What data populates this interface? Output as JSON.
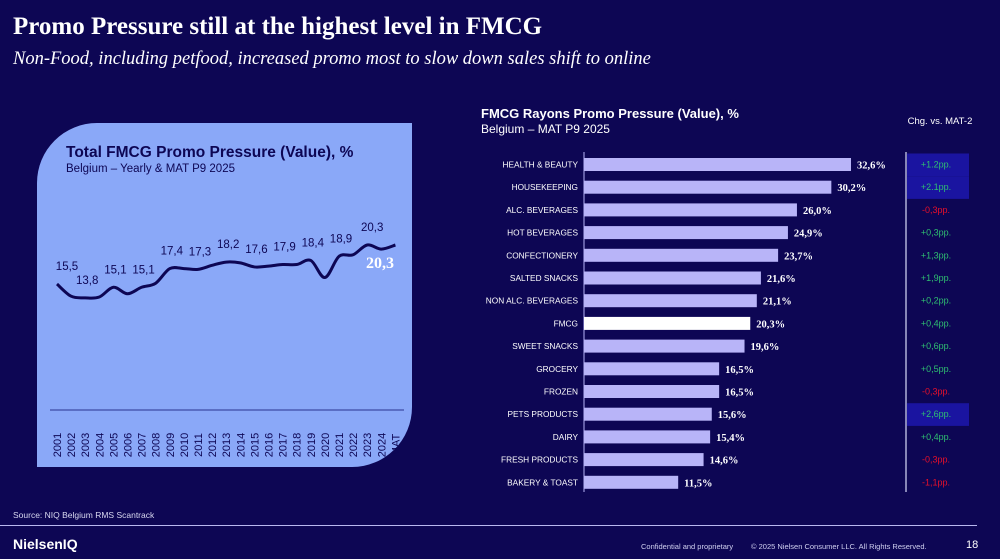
{
  "header": {
    "title": "Promo Pressure still at the highest level in FMCG",
    "subtitle": "Non-Food, including petfood, increased promo most to slow down sales shift to online"
  },
  "chart_data": [
    {
      "type": "line",
      "title": "Total FMCG Promo Pressure (Value), %",
      "subtitle": "Belgium – Yearly & MAT P9 2025",
      "categories": [
        "2001",
        "2002",
        "2003",
        "2004",
        "2005",
        "2006",
        "2007",
        "2008",
        "2009",
        "2010",
        "2011",
        "2012",
        "2013",
        "2014",
        "2015",
        "2016",
        "2017",
        "2018",
        "2019",
        "2020",
        "2021",
        "2022",
        "2023",
        "2024",
        "MAT"
      ],
      "values": [
        15.5,
        14.0,
        13.8,
        13.9,
        15.1,
        14.3,
        15.1,
        15.6,
        17.4,
        17.4,
        17.3,
        17.8,
        18.2,
        18.1,
        17.6,
        17.7,
        17.9,
        17.9,
        18.4,
        16.3,
        18.9,
        19.1,
        20.3,
        19.8,
        20.3
      ],
      "data_labels": [
        {
          "category": "2001",
          "label": "15,5"
        },
        {
          "category": "2003",
          "label": "13,8"
        },
        {
          "category": "2005",
          "label": "15,1"
        },
        {
          "category": "2007",
          "label": "15,1"
        },
        {
          "category": "2009",
          "label": "17,4"
        },
        {
          "category": "2011",
          "label": "17,3"
        },
        {
          "category": "2013",
          "label": "18,2"
        },
        {
          "category": "2015",
          "label": "17,6"
        },
        {
          "category": "2017",
          "label": "17,9"
        },
        {
          "category": "2019",
          "label": "18,4"
        },
        {
          "category": "2021",
          "label": "18,9"
        },
        {
          "category": "2023",
          "label": "20,3"
        }
      ],
      "highlight_label": "20,3",
      "ylim": [
        0,
        23
      ],
      "grid": false,
      "line_color": "#0d0654",
      "highlight_color": "#ffffff"
    },
    {
      "type": "bar",
      "orientation": "horizontal",
      "title": "FMCG Rayons Promo Pressure (Value), %",
      "subtitle": "Belgium – MAT P9 2025",
      "change_header": "Chg. vs. MAT-2",
      "categories": [
        "HEALTH & BEAUTY",
        "HOUSEKEEPING",
        "ALC. BEVERAGES",
        "HOT BEVERAGES",
        "CONFECTIONERY",
        "SALTED SNACKS",
        "NON ALC. BEVERAGES",
        "FMCG",
        "SWEET SNACKS",
        "GROCERY",
        "FROZEN",
        "PETS PRODUCTS",
        "DAIRY",
        "FRESH PRODUCTS",
        "BAKERY & TOAST"
      ],
      "values": [
        32.6,
        30.2,
        26.0,
        24.9,
        23.7,
        21.6,
        21.1,
        20.3,
        19.6,
        16.5,
        16.5,
        15.6,
        15.4,
        14.6,
        11.5
      ],
      "value_labels": [
        "32,6%",
        "30,2%",
        "26,0%",
        "24,9%",
        "23,7%",
        "21,6%",
        "21,1%",
        "20,3%",
        "19,6%",
        "16,5%",
        "16,5%",
        "15,6%",
        "15,4%",
        "14,6%",
        "11,5%"
      ],
      "changes": [
        "+1.2pp.",
        "+2.1pp.",
        "-0,3pp.",
        "+0,3pp.",
        "+1,3pp.",
        "+1,9pp.",
        "+0,2pp.",
        "+0,4pp.",
        "+0,6pp.",
        "+0,5pp.",
        "-0,3pp.",
        "+2,6pp.",
        "+0,4pp.",
        "-0,3pp.",
        "-1,1pp."
      ],
      "highlighted_changes": [
        "HEALTH & BEAUTY",
        "HOUSEKEEPING",
        "PETS PRODUCTS"
      ],
      "total_category": "FMCG",
      "xlim": [
        0,
        35
      ],
      "colors": {
        "bar": "#b8b4f8",
        "total_bar": "#ffffff",
        "positive": "#2fbf71",
        "negative": "#e8102a",
        "highlight_bg": "#1a14a0"
      }
    }
  ],
  "footer": {
    "source": "Source: NIQ Belgium RMS Scantrack",
    "logo": "NielsenIQ",
    "confidential": "Confidential and proprietary",
    "copyright": "© 2025 Nielsen Consumer LLC. All Rights Reserved.",
    "page_number": "18"
  }
}
